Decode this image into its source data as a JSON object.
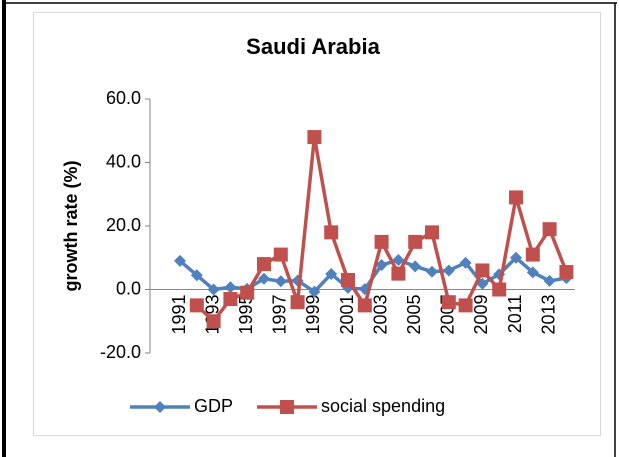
{
  "chart_data": {
    "type": "line",
    "title": "Saudi Arabia",
    "y_label": "growth rate (%)",
    "categories": [
      "1991",
      null,
      "1993",
      null,
      "1995",
      null,
      "1997",
      null,
      "1999",
      null,
      "2001",
      null,
      "2003",
      null,
      "2005",
      null,
      "2007",
      null,
      "2009",
      null,
      "2011",
      null,
      "2013",
      null
    ],
    "series": [
      {
        "name": "GDP",
        "color": "#4f81bd",
        "marker": "diamond",
        "values": [
          9,
          4.5,
          0,
          0.7,
          0.2,
          3.4,
          2.6,
          2.8,
          -0.7,
          4.9,
          0.5,
          0.1,
          7.7,
          9.3,
          7.3,
          5.6,
          6,
          8.4,
          1.8,
          4.8,
          10,
          5.4,
          2.7,
          3.6
        ]
      },
      {
        "name": "social spending",
        "color": "#c0504d",
        "marker": "square",
        "values": [
          null,
          -5,
          -10,
          -3,
          -1,
          8,
          11,
          -4,
          48,
          18,
          3,
          -5,
          15,
          5,
          15,
          18,
          -4,
          -5,
          6,
          0,
          29,
          11,
          19,
          5.5
        ]
      }
    ],
    "ylim": [
      -20,
      60
    ],
    "yticks": [
      {
        "value": -20,
        "label": "-20.0"
      },
      {
        "value": 0,
        "label": "0.0"
      },
      {
        "value": 20,
        "label": "20.0"
      },
      {
        "value": 40,
        "label": "40.0"
      },
      {
        "value": 60,
        "label": "60.0"
      }
    ],
    "legend": "bottom"
  }
}
